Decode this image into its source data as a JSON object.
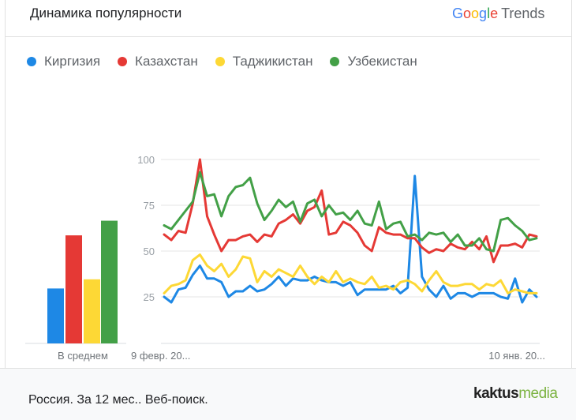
{
  "header": {
    "title": "Динамика популярности",
    "logo_google": "Google",
    "logo_trends": "Trends"
  },
  "legend": [
    {
      "label": "Киргизия",
      "color": "#1e88e5"
    },
    {
      "label": "Казахстан",
      "color": "#e53935"
    },
    {
      "label": "Таджикистан",
      "color": "#fdd835"
    },
    {
      "label": "Узбекистан",
      "color": "#43a047"
    }
  ],
  "footer": {
    "text": "Россия. За 12 мес.. Веб-поиск.",
    "brand_part1": "kaktus",
    "brand_part2": "media"
  },
  "chart_data": {
    "type": "line",
    "yticks": [
      25,
      50,
      75,
      100
    ],
    "x_tick_labels": [
      "9 февр. 20...",
      "10 янв. 20..."
    ],
    "average_label": "В среднем",
    "averages": [
      {
        "name": "Киргизия",
        "value": 30
      },
      {
        "name": "Казахстан",
        "value": 59
      },
      {
        "name": "Таджикистан",
        "value": 35
      },
      {
        "name": "Узбекистан",
        "value": 67
      }
    ],
    "series": [
      {
        "name": "Киргизия",
        "color": "#1e88e5",
        "values": [
          25,
          22,
          29,
          30,
          37,
          42,
          35,
          35,
          33,
          25,
          28,
          28,
          31,
          28,
          29,
          32,
          36,
          31,
          35,
          34,
          34,
          36,
          34,
          33,
          33,
          31,
          33,
          26,
          29,
          29,
          29,
          29,
          31,
          27,
          30,
          91,
          36,
          29,
          25,
          31,
          24,
          27,
          27,
          25,
          27,
          27,
          27,
          25,
          24,
          35,
          22,
          29,
          25
        ]
      },
      {
        "name": "Казахстан",
        "color": "#e53935",
        "values": [
          59,
          56,
          61,
          60,
          76,
          100,
          69,
          59,
          50,
          56,
          56,
          58,
          59,
          55,
          59,
          58,
          65,
          67,
          70,
          65,
          72,
          74,
          83,
          59,
          60,
          66,
          64,
          60,
          53,
          50,
          63,
          60,
          59,
          59,
          57,
          57,
          52,
          49,
          51,
          50,
          54,
          52,
          51,
          55,
          51,
          58,
          44,
          53,
          53,
          54,
          52,
          59,
          58
        ]
      },
      {
        "name": "Таджикистан",
        "color": "#fdd835",
        "values": [
          27,
          31,
          32,
          34,
          45,
          48,
          42,
          39,
          43,
          36,
          40,
          47,
          46,
          33,
          39,
          36,
          40,
          38,
          36,
          42,
          36,
          32,
          36,
          33,
          39,
          33,
          35,
          33,
          32,
          36,
          30,
          31,
          29,
          33,
          34,
          32,
          28,
          34,
          39,
          33,
          31,
          31,
          32,
          32,
          29,
          32,
          31,
          34,
          27,
          29,
          28,
          27,
          27
        ]
      },
      {
        "name": "Узбекистан",
        "color": "#43a047",
        "values": [
          64,
          62,
          67,
          72,
          77,
          93,
          80,
          81,
          69,
          80,
          85,
          86,
          90,
          76,
          67,
          72,
          78,
          74,
          77,
          66,
          76,
          78,
          69,
          75,
          70,
          71,
          67,
          72,
          65,
          64,
          77,
          62,
          65,
          66,
          58,
          59,
          56,
          60,
          59,
          60,
          55,
          59,
          53,
          53,
          57,
          51,
          50,
          67,
          68,
          64,
          61,
          56,
          57
        ]
      }
    ]
  }
}
